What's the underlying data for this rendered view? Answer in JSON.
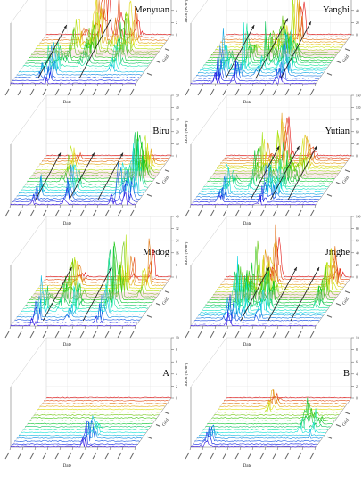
{
  "chart_data": [
    {
      "type": "area",
      "title": "Menyuan",
      "xlabel": "Date",
      "ylabel": "ΔIUR (W/m²)",
      "zlabel": "Grid",
      "ridges": 18,
      "peaks": [
        [
          0.46,
          14,
          8,
          0.7
        ],
        [
          0.5,
          15,
          9,
          0.8
        ],
        [
          0.74,
          11,
          7,
          0.9
        ],
        [
          0.33,
          12,
          5,
          0.5
        ],
        [
          0.6,
          16,
          6,
          0.6
        ],
        [
          0.28,
          4,
          5,
          0.5
        ],
        [
          0.2,
          6,
          4,
          0.4
        ]
      ],
      "arrows": [
        [
          0.22,
          0.8
        ],
        [
          0.55,
          0.9
        ]
      ],
      "ylim": [
        0,
        10
      ]
    },
    {
      "type": "area",
      "title": "Yangbi",
      "xlabel": "Date",
      "ylabel": "ΔIUR (W/m²)",
      "zlabel": "Grid",
      "ridges": 20,
      "peaks": [
        [
          0.62,
          15,
          11,
          0.8
        ],
        [
          0.34,
          6,
          7,
          0.7
        ],
        [
          0.48,
          9,
          6,
          0.6
        ],
        [
          0.7,
          5,
          6,
          0.7
        ],
        [
          0.2,
          4,
          5,
          0.6
        ],
        [
          0.55,
          12,
          5,
          0.6
        ]
      ],
      "arrows": [
        [
          0.28,
          0.8
        ],
        [
          0.52,
          0.9
        ],
        [
          0.72,
          0.85
        ]
      ],
      "ylim": [
        0,
        100
      ]
    },
    {
      "type": "area",
      "title": "Biru",
      "xlabel": "Date",
      "ylabel": "ΔIUR (W/m²)",
      "zlabel": "Grid",
      "ridges": 18,
      "peaks": [
        [
          0.88,
          8,
          7,
          0.9
        ],
        [
          0.92,
          5,
          6,
          0.7
        ],
        [
          0.82,
          4,
          5,
          0.6
        ],
        [
          0.28,
          12,
          4,
          0.5
        ],
        [
          0.43,
          4,
          4,
          0.5
        ],
        [
          0.18,
          3,
          3,
          0.4
        ]
      ],
      "arrows": [
        [
          0.2,
          0.7
        ],
        [
          0.47,
          0.7
        ],
        [
          0.7,
          0.7
        ]
      ],
      "ylim": [
        0,
        50
      ]
    },
    {
      "type": "area",
      "title": "Yutian",
      "xlabel": "Date",
      "ylabel": "ΔIUR (W/m²)",
      "zlabel": "Grid",
      "ridges": 20,
      "peaks": [
        [
          0.5,
          16,
          8,
          0.8
        ],
        [
          0.38,
          12,
          6,
          0.7
        ],
        [
          0.62,
          8,
          6,
          0.6
        ],
        [
          0.7,
          14,
          5,
          0.6
        ],
        [
          0.22,
          5,
          4,
          0.5
        ],
        [
          0.56,
          4,
          5,
          0.5
        ]
      ],
      "arrows": [
        [
          0.48,
          0.8
        ],
        [
          0.64,
          0.8
        ],
        [
          0.78,
          0.8
        ]
      ],
      "ylim": [
        0,
        150
      ]
    },
    {
      "type": "area",
      "title": "Medog",
      "xlabel": "Date",
      "ylabel": "ΔIUR (W/m²)",
      "zlabel": "Grid",
      "ridges": 18,
      "peaks": [
        [
          0.68,
          8,
          7,
          0.9
        ],
        [
          0.72,
          12,
          6,
          0.8
        ],
        [
          0.3,
          11,
          6,
          0.6
        ],
        [
          0.18,
          4,
          5,
          0.5
        ],
        [
          0.86,
          15,
          5,
          0.6
        ],
        [
          0.42,
          6,
          4,
          0.5
        ]
      ],
      "arrows": [
        [
          0.26,
          0.8
        ],
        [
          0.58,
          0.8
        ]
      ],
      "ylim": [
        0,
        40
      ]
    },
    {
      "type": "area",
      "title": "Jinghe",
      "xlabel": "Date",
      "ylabel": "ΔIUR (W/m²)",
      "zlabel": "Grid",
      "ridges": 20,
      "peaks": [
        [
          0.36,
          12,
          10,
          0.9
        ],
        [
          0.3,
          6,
          8,
          0.8
        ],
        [
          0.42,
          16,
          9,
          0.8
        ],
        [
          0.24,
          9,
          7,
          0.7
        ],
        [
          0.5,
          8,
          6,
          0.6
        ],
        [
          0.9,
          14,
          7,
          0.7
        ]
      ],
      "arrows": [
        [
          0.4,
          0.8
        ],
        [
          0.62,
          0.8
        ],
        [
          0.8,
          0.8
        ]
      ],
      "ylim": [
        0,
        100
      ]
    },
    {
      "type": "area",
      "title": "A",
      "xlabel": "Date",
      "ylabel": "ΔIUR (W/m²)",
      "zlabel": "Grid",
      "ridges": 18,
      "peaks": [
        [
          0.6,
          2,
          4,
          0.5
        ]
      ],
      "arrows": [],
      "ylim": [
        0,
        10
      ]
    },
    {
      "type": "area",
      "title": "B",
      "xlabel": "Date",
      "ylabel": "ΔIUR (W/m²)",
      "zlabel": "Grid",
      "ridges": 18,
      "peaks": [
        [
          0.8,
          8,
          3,
          0.4
        ],
        [
          0.9,
          6,
          3,
          0.3
        ],
        [
          0.42,
          14,
          2,
          0.3
        ],
        [
          0.12,
          2,
          2,
          0.3
        ]
      ],
      "arrows": [],
      "ylim": [
        0,
        10
      ]
    }
  ]
}
